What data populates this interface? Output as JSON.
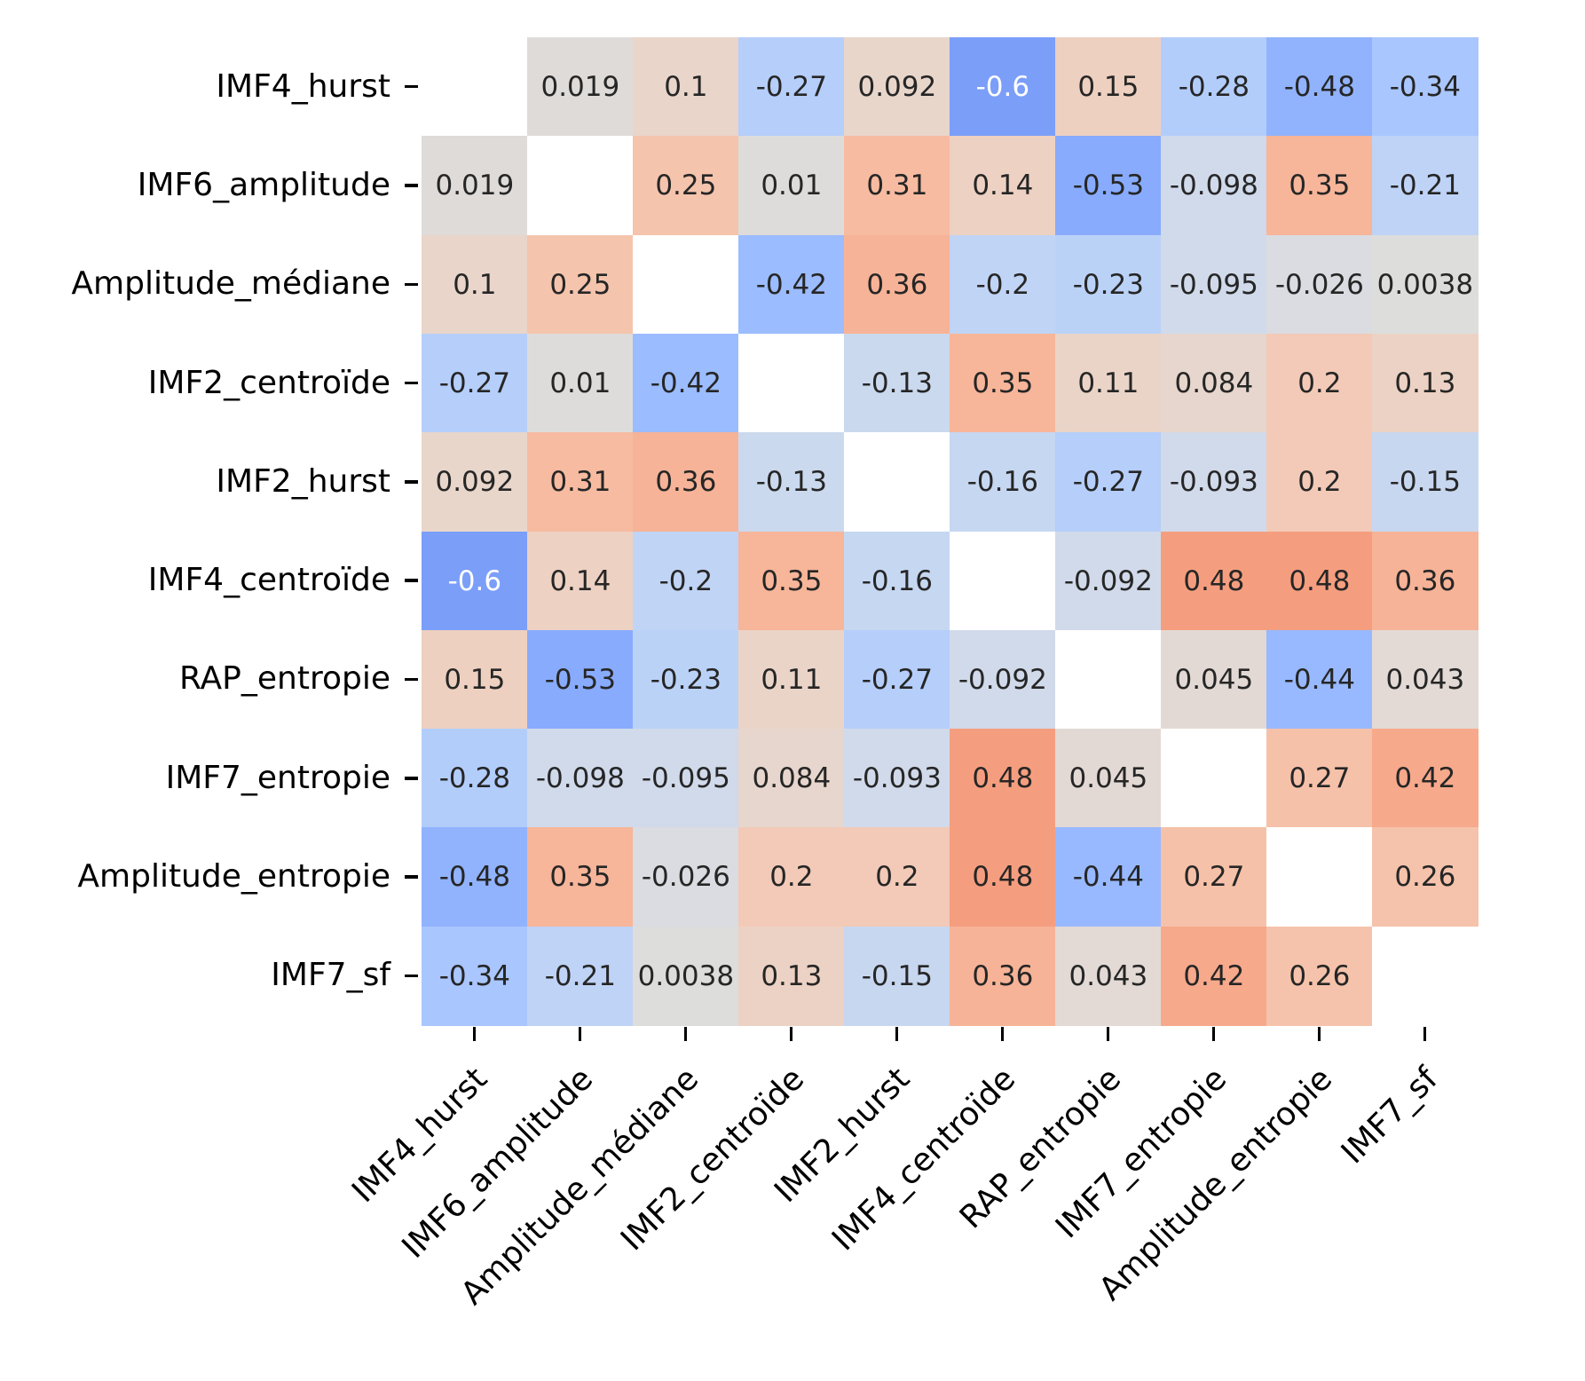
{
  "figure": {
    "background_color": "#ffffff"
  },
  "chart_data": {
    "type": "heatmap",
    "title": "",
    "labels": [
      "IMF4_hurst",
      "IMF6_amplitude",
      "Amplitude_médiane",
      "IMF2_centroïde",
      "IMF2_hurst",
      "IMF4_centroïde",
      "RAP_entropie",
      "IMF7_entropie",
      "Amplitude_entropie",
      "IMF7_sf"
    ],
    "matrix_display": [
      [
        null,
        "0.019",
        "0.1",
        "-0.27",
        "0.092",
        "-0.6",
        "0.15",
        "-0.28",
        "-0.48",
        "-0.34"
      ],
      [
        "0.019",
        null,
        "0.25",
        "0.01",
        "0.31",
        "0.14",
        "-0.53",
        "-0.098",
        "0.35",
        "-0.21"
      ],
      [
        "0.1",
        "0.25",
        null,
        "-0.42",
        "0.36",
        "-0.2",
        "-0.23",
        "-0.095",
        "-0.026",
        "0.0038"
      ],
      [
        "-0.27",
        "0.01",
        "-0.42",
        null,
        "-0.13",
        "0.35",
        "0.11",
        "0.084",
        "0.2",
        "0.13"
      ],
      [
        "0.092",
        "0.31",
        "0.36",
        "-0.13",
        null,
        "-0.16",
        "-0.27",
        "-0.093",
        "0.2",
        "-0.15"
      ],
      [
        "-0.6",
        "0.14",
        "-0.2",
        "0.35",
        "-0.16",
        null,
        "-0.092",
        "0.48",
        "0.48",
        "0.36"
      ],
      [
        "0.15",
        "-0.53",
        "-0.23",
        "0.11",
        "-0.27",
        "-0.092",
        null,
        "0.045",
        "-0.44",
        "0.043"
      ],
      [
        "-0.28",
        "-0.098",
        "-0.095",
        "0.084",
        "-0.093",
        "0.48",
        "0.045",
        null,
        "0.27",
        "0.42"
      ],
      [
        "-0.48",
        "0.35",
        "-0.026",
        "0.2",
        "0.2",
        "0.48",
        "-0.44",
        "0.27",
        null,
        "0.26"
      ],
      [
        "-0.34",
        "-0.21",
        "0.0038",
        "0.13",
        "-0.15",
        "0.36",
        "0.043",
        "0.42",
        "0.26",
        null
      ]
    ],
    "colormap": "coolwarm",
    "vmin": -1,
    "vmax": 1,
    "diagonal_masked": true,
    "mask_color": "#ffffff",
    "annotation_text_dark": "#262626",
    "annotation_text_light": "#ffffff",
    "tick_color": "#000000",
    "label_color": "#000000",
    "x_label_rotation_deg": 45,
    "legend": "none",
    "grid": "off"
  }
}
